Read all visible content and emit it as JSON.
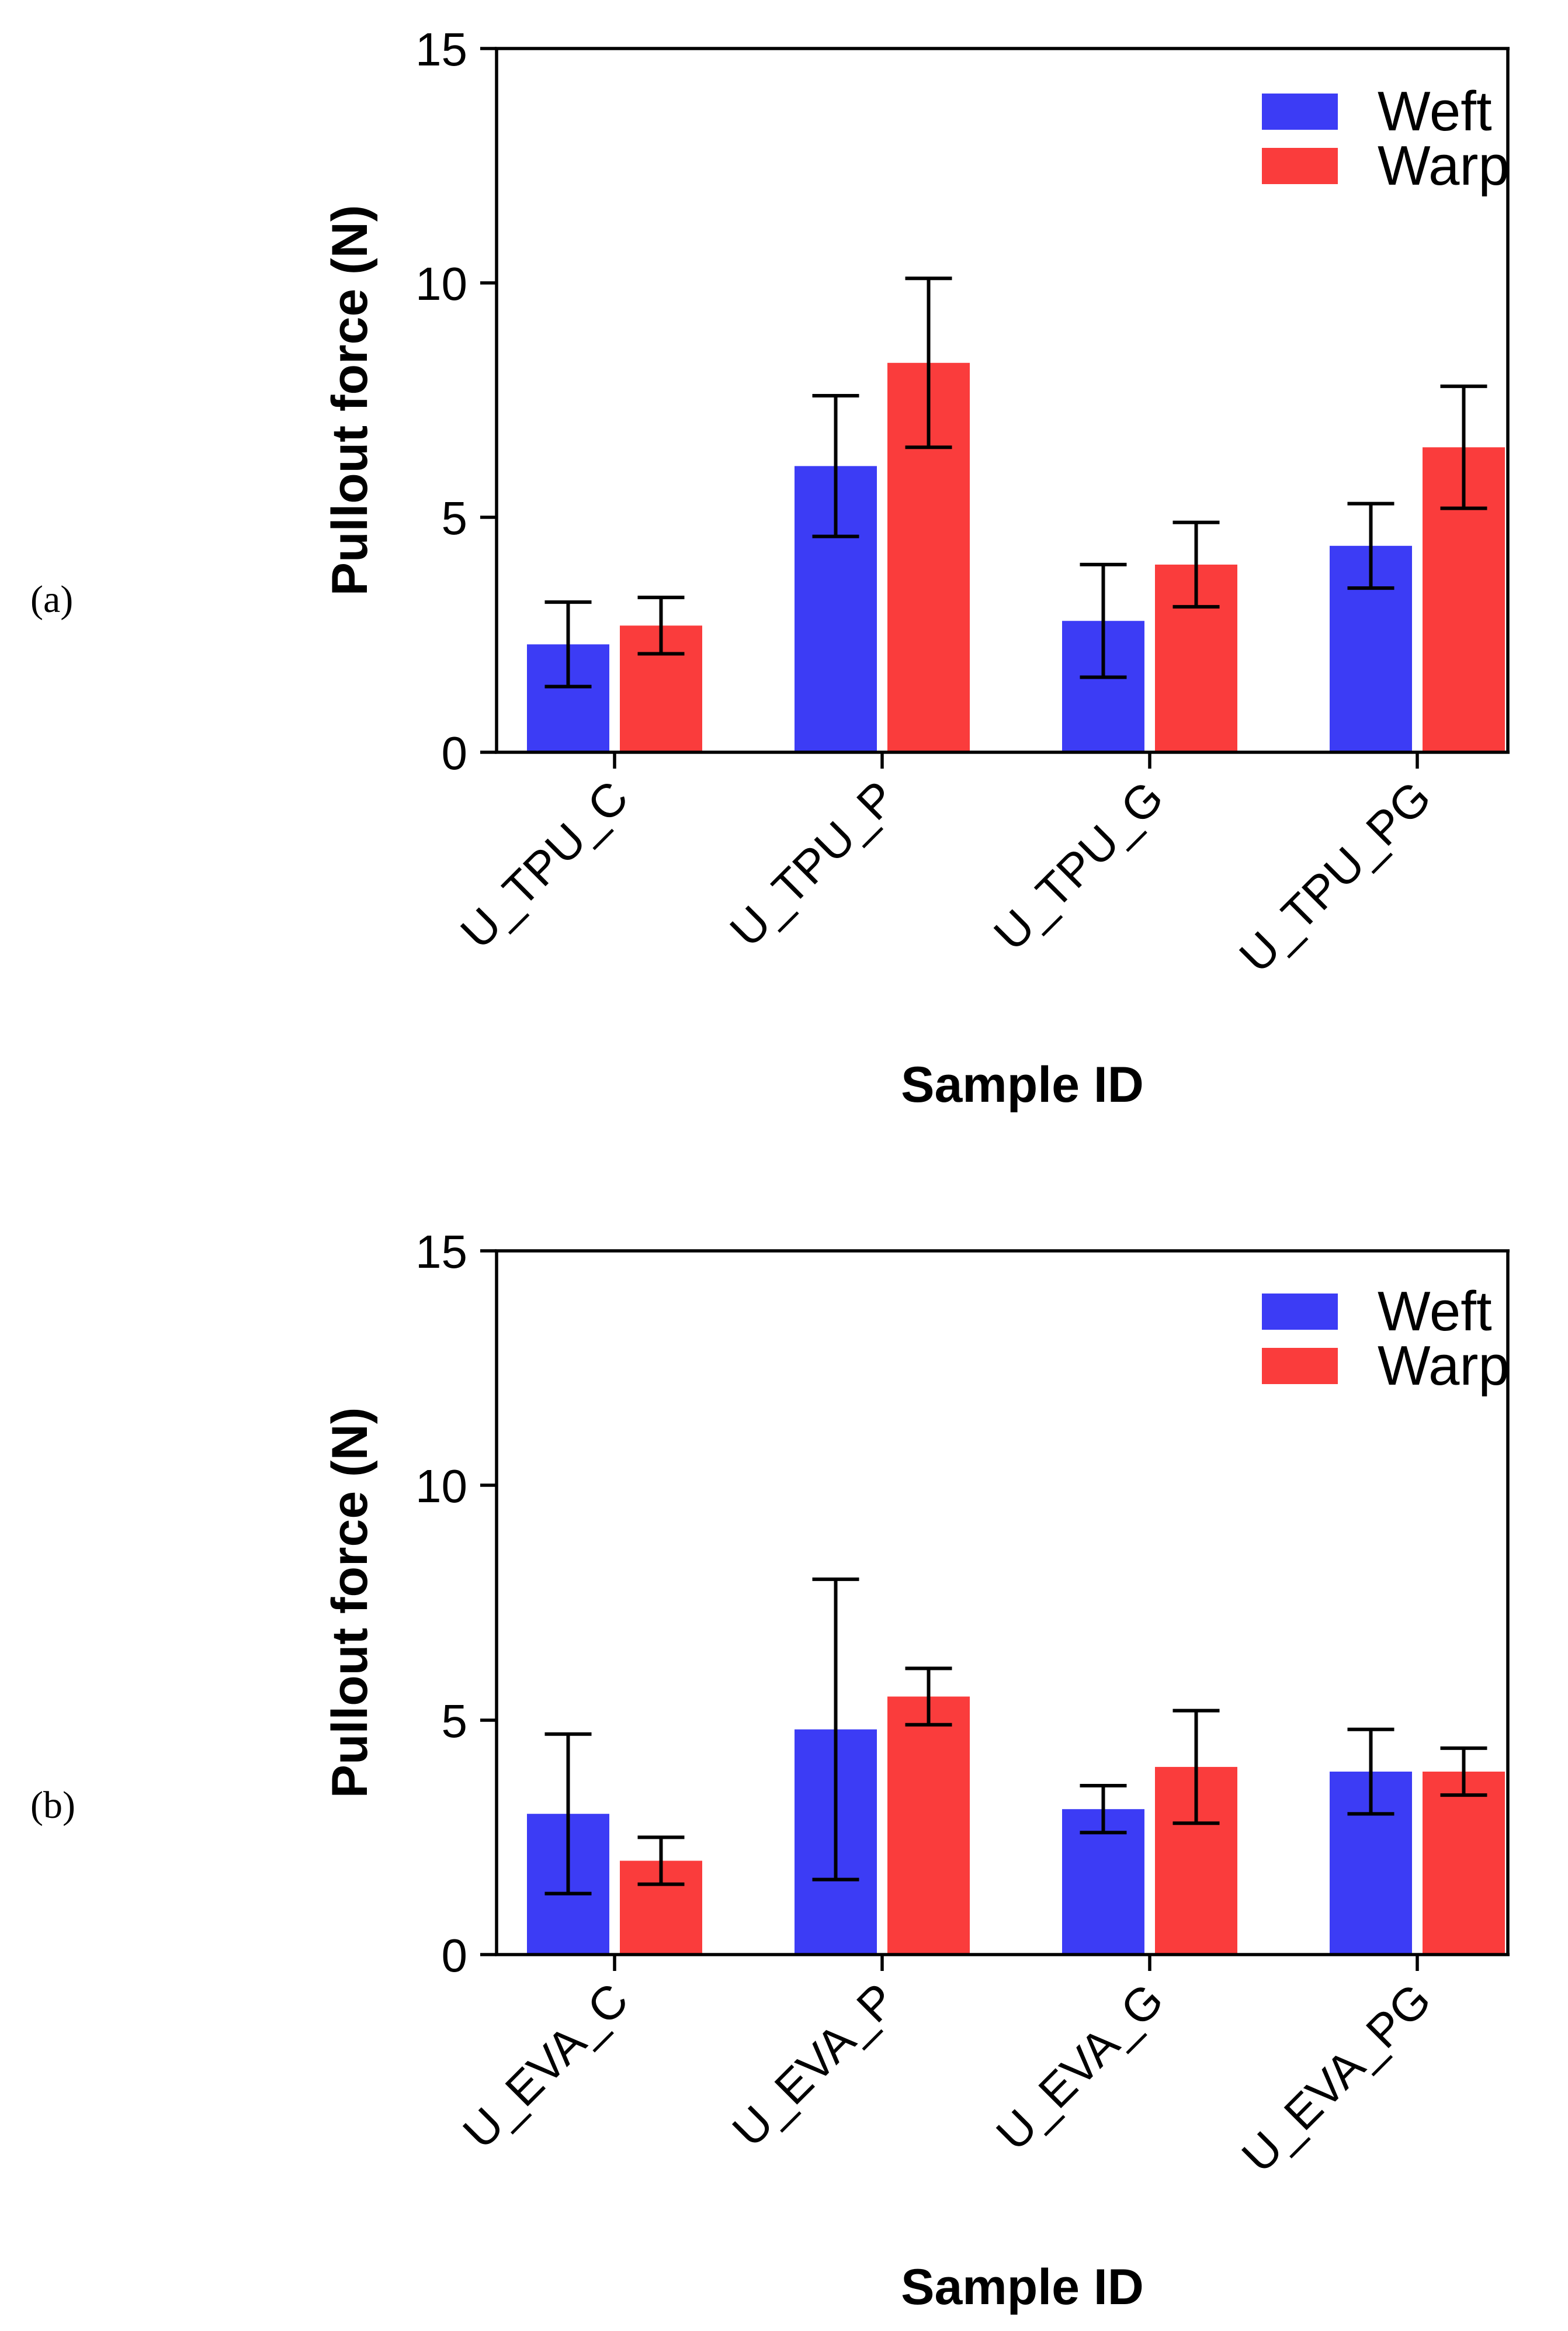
{
  "chart_data": [
    {
      "panel_label": "(a)",
      "type": "bar",
      "categories": [
        "U_TPU_C",
        "U_TPU_P",
        "U_TPU_G",
        "U_TPU_PG"
      ],
      "series": [
        {
          "name": "Weft",
          "color": "#3c3cf5",
          "values": [
            2.3,
            6.1,
            2.8,
            4.4
          ],
          "errors": [
            0.9,
            1.5,
            1.2,
            0.9
          ]
        },
        {
          "name": "Warp",
          "color": "#fa3c3c",
          "values": [
            2.7,
            8.3,
            4.0,
            6.5
          ],
          "errors": [
            0.6,
            1.8,
            0.9,
            1.3
          ]
        }
      ],
      "xlabel": "Sample ID",
      "ylabel": "Pullout force (N)",
      "ylim": [
        0,
        15
      ],
      "yticks": [
        "0",
        "5",
        "10",
        "15"
      ],
      "legend_position": "top-right"
    },
    {
      "panel_label": "(b)",
      "type": "bar",
      "categories": [
        "U_EVA_C",
        "U_EVA_P",
        "U_EVA_G",
        "U_EVA_PG"
      ],
      "series": [
        {
          "name": "Weft",
          "color": "#3c3cf5",
          "values": [
            3.0,
            4.8,
            3.1,
            3.9
          ],
          "errors": [
            1.7,
            3.2,
            0.5,
            0.9
          ]
        },
        {
          "name": "Warp",
          "color": "#fa3c3c",
          "values": [
            2.0,
            5.5,
            4.0,
            3.9
          ],
          "errors": [
            0.5,
            0.6,
            1.2,
            0.5
          ]
        }
      ],
      "xlabel": "Sample ID",
      "ylabel": "Pullout force (N)",
      "ylim": [
        0,
        15
      ],
      "yticks": [
        "0",
        "5",
        "10",
        "15"
      ],
      "legend_position": "top-right"
    }
  ]
}
